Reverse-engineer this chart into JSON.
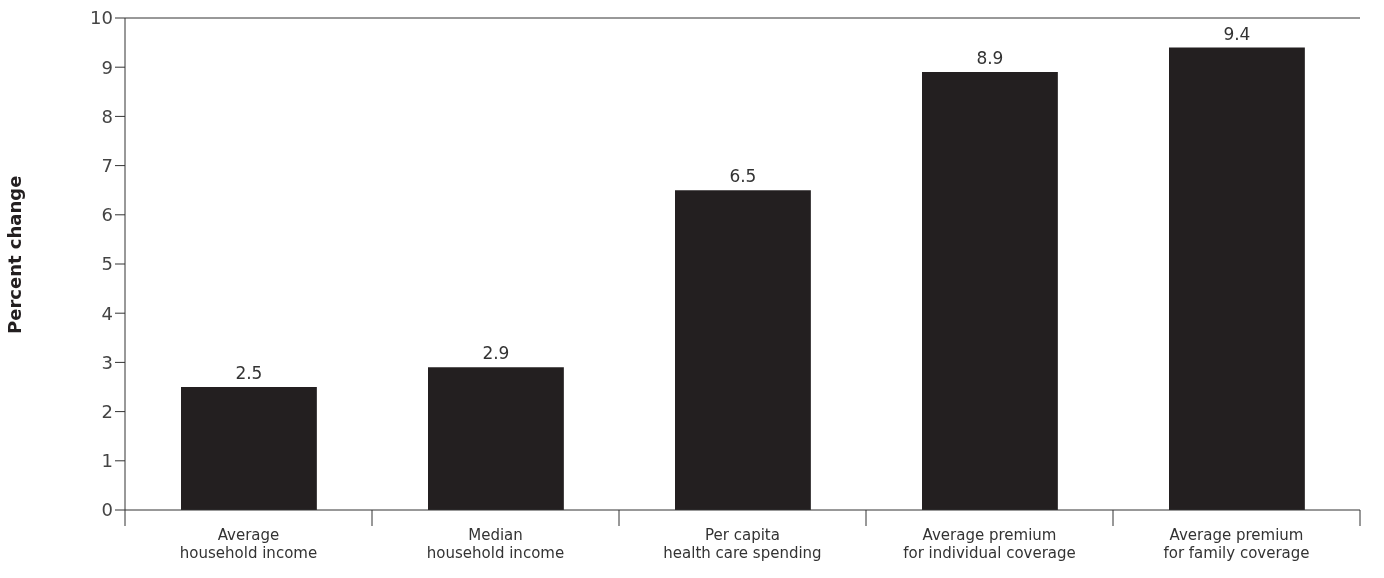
{
  "chart_data": {
    "type": "bar",
    "ylabel": "Percent change",
    "categories": [
      "Average\nhousehold income",
      "Median\nhousehold income",
      "Per capita\nhealth care spending",
      "Average premium\nfor individual coverage",
      "Average premium\nfor family coverage"
    ],
    "values": [
      2.5,
      2.9,
      6.5,
      8.9,
      9.4
    ],
    "color": "#231f20",
    "ylim": [
      0,
      10
    ],
    "yticks": [
      0,
      1,
      2,
      3,
      4,
      5,
      6,
      7,
      8,
      9,
      10
    ],
    "grid": false,
    "data_labels": true
  }
}
